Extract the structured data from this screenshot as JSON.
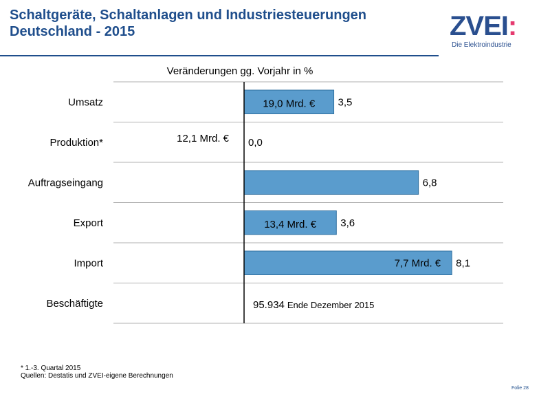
{
  "header": {
    "title_line1": "Schaltgeräte, Schaltanlagen und Industriesteuerungen",
    "title_line2": "Deutschland - 2015"
  },
  "logo": {
    "brand_main": "ZVEI",
    "brand_dot": ":",
    "tagline": "Die Elektroindustrie"
  },
  "colors": {
    "bar": "#5a9ccd",
    "bar_stroke": "#2f6f9f",
    "title": "#1f4e8c",
    "grid": "#b0b0b0"
  },
  "chart_data": {
    "type": "bar",
    "orientation": "horizontal",
    "title": "Veränderungen gg. Vorjahr in %",
    "categories": [
      "Umsatz",
      "Produktion*",
      "Auftragseingang",
      "Export",
      "Import",
      "Beschäftigte"
    ],
    "values": [
      3.5,
      0.0,
      6.8,
      3.6,
      8.1,
      null
    ],
    "value_labels": [
      "3,5",
      "0,0",
      "6,8",
      "3,6",
      "8,1",
      ""
    ],
    "absolute_labels": [
      "19,0 Mrd. €",
      "12,1 Mrd. €",
      "",
      "13,4 Mrd. €",
      "7,7 Mrd. €",
      ""
    ],
    "employee_count": "95.934",
    "employee_note": "Ende Dezember 2015",
    "xlim": [
      -5,
      10
    ]
  },
  "footer": {
    "note1": "* 1.-3. Quartal 2015",
    "note2": "Quellen: Destatis und ZVEI-eigene Berechnungen",
    "slide_number": "Folie 28"
  }
}
